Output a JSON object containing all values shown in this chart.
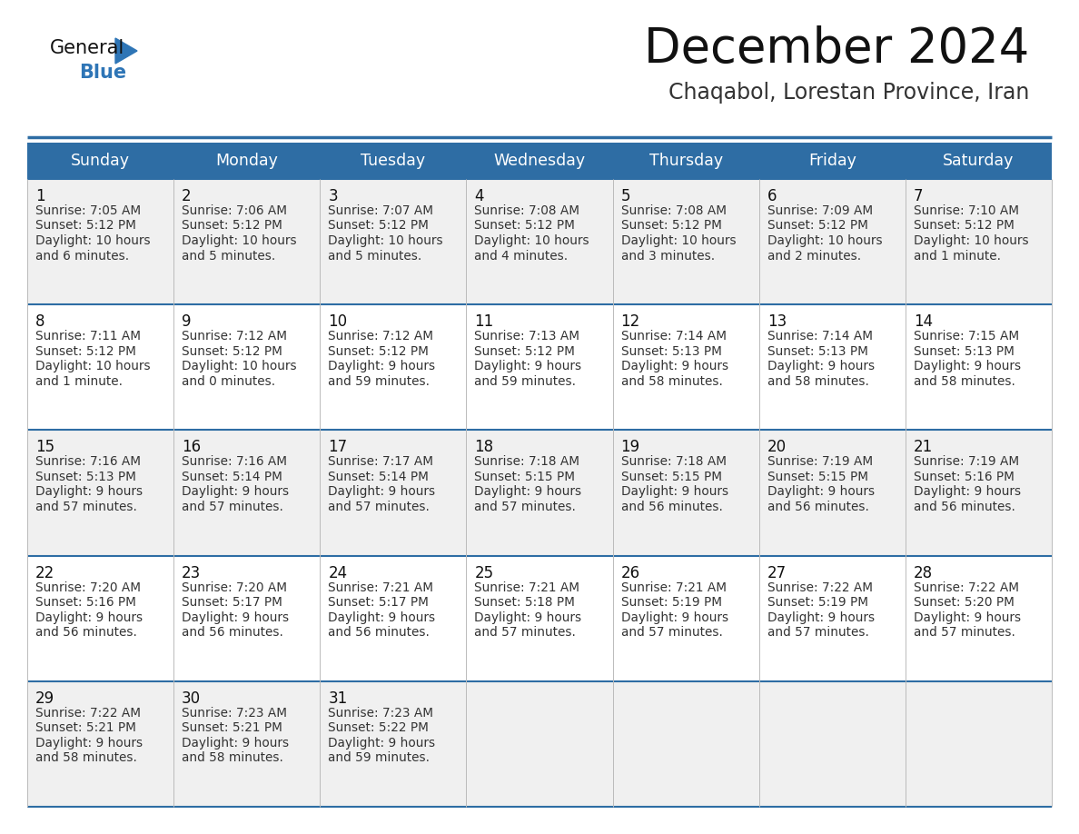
{
  "title": "December 2024",
  "subtitle": "Chaqabol, Lorestan Province, Iran",
  "header_bg": "#2E6DA4",
  "header_text_color": "#FFFFFF",
  "cell_bg_odd": "#F0F0F0",
  "cell_bg_even": "#FFFFFF",
  "day_headers": [
    "Sunday",
    "Monday",
    "Tuesday",
    "Wednesday",
    "Thursday",
    "Friday",
    "Saturday"
  ],
  "title_fontsize": 38,
  "subtitle_fontsize": 17,
  "header_fontsize": 12.5,
  "day_num_fontsize": 12,
  "cell_fontsize": 9.8,
  "logo_general_color": "#111111",
  "logo_blue_color": "#2E75B6",
  "border_color": "#2E6DA4",
  "weeks": [
    [
      {
        "day": 1,
        "sunrise": "7:05 AM",
        "sunset": "5:12 PM",
        "daylight": "10 hours and 6 minutes."
      },
      {
        "day": 2,
        "sunrise": "7:06 AM",
        "sunset": "5:12 PM",
        "daylight": "10 hours and 5 minutes."
      },
      {
        "day": 3,
        "sunrise": "7:07 AM",
        "sunset": "5:12 PM",
        "daylight": "10 hours and 5 minutes."
      },
      {
        "day": 4,
        "sunrise": "7:08 AM",
        "sunset": "5:12 PM",
        "daylight": "10 hours and 4 minutes."
      },
      {
        "day": 5,
        "sunrise": "7:08 AM",
        "sunset": "5:12 PM",
        "daylight": "10 hours and 3 minutes."
      },
      {
        "day": 6,
        "sunrise": "7:09 AM",
        "sunset": "5:12 PM",
        "daylight": "10 hours and 2 minutes."
      },
      {
        "day": 7,
        "sunrise": "7:10 AM",
        "sunset": "5:12 PM",
        "daylight": "10 hours and 1 minute."
      }
    ],
    [
      {
        "day": 8,
        "sunrise": "7:11 AM",
        "sunset": "5:12 PM",
        "daylight": "10 hours and 1 minute."
      },
      {
        "day": 9,
        "sunrise": "7:12 AM",
        "sunset": "5:12 PM",
        "daylight": "10 hours and 0 minutes."
      },
      {
        "day": 10,
        "sunrise": "7:12 AM",
        "sunset": "5:12 PM",
        "daylight": "9 hours and 59 minutes."
      },
      {
        "day": 11,
        "sunrise": "7:13 AM",
        "sunset": "5:12 PM",
        "daylight": "9 hours and 59 minutes."
      },
      {
        "day": 12,
        "sunrise": "7:14 AM",
        "sunset": "5:13 PM",
        "daylight": "9 hours and 58 minutes."
      },
      {
        "day": 13,
        "sunrise": "7:14 AM",
        "sunset": "5:13 PM",
        "daylight": "9 hours and 58 minutes."
      },
      {
        "day": 14,
        "sunrise": "7:15 AM",
        "sunset": "5:13 PM",
        "daylight": "9 hours and 58 minutes."
      }
    ],
    [
      {
        "day": 15,
        "sunrise": "7:16 AM",
        "sunset": "5:13 PM",
        "daylight": "9 hours and 57 minutes."
      },
      {
        "day": 16,
        "sunrise": "7:16 AM",
        "sunset": "5:14 PM",
        "daylight": "9 hours and 57 minutes."
      },
      {
        "day": 17,
        "sunrise": "7:17 AM",
        "sunset": "5:14 PM",
        "daylight": "9 hours and 57 minutes."
      },
      {
        "day": 18,
        "sunrise": "7:18 AM",
        "sunset": "5:15 PM",
        "daylight": "9 hours and 57 minutes."
      },
      {
        "day": 19,
        "sunrise": "7:18 AM",
        "sunset": "5:15 PM",
        "daylight": "9 hours and 56 minutes."
      },
      {
        "day": 20,
        "sunrise": "7:19 AM",
        "sunset": "5:15 PM",
        "daylight": "9 hours and 56 minutes."
      },
      {
        "day": 21,
        "sunrise": "7:19 AM",
        "sunset": "5:16 PM",
        "daylight": "9 hours and 56 minutes."
      }
    ],
    [
      {
        "day": 22,
        "sunrise": "7:20 AM",
        "sunset": "5:16 PM",
        "daylight": "9 hours and 56 minutes."
      },
      {
        "day": 23,
        "sunrise": "7:20 AM",
        "sunset": "5:17 PM",
        "daylight": "9 hours and 56 minutes."
      },
      {
        "day": 24,
        "sunrise": "7:21 AM",
        "sunset": "5:17 PM",
        "daylight": "9 hours and 56 minutes."
      },
      {
        "day": 25,
        "sunrise": "7:21 AM",
        "sunset": "5:18 PM",
        "daylight": "9 hours and 57 minutes."
      },
      {
        "day": 26,
        "sunrise": "7:21 AM",
        "sunset": "5:19 PM",
        "daylight": "9 hours and 57 minutes."
      },
      {
        "day": 27,
        "sunrise": "7:22 AM",
        "sunset": "5:19 PM",
        "daylight": "9 hours and 57 minutes."
      },
      {
        "day": 28,
        "sunrise": "7:22 AM",
        "sunset": "5:20 PM",
        "daylight": "9 hours and 57 minutes."
      }
    ],
    [
      {
        "day": 29,
        "sunrise": "7:22 AM",
        "sunset": "5:21 PM",
        "daylight": "9 hours and 58 minutes."
      },
      {
        "day": 30,
        "sunrise": "7:23 AM",
        "sunset": "5:21 PM",
        "daylight": "9 hours and 58 minutes."
      },
      {
        "day": 31,
        "sunrise": "7:23 AM",
        "sunset": "5:22 PM",
        "daylight": "9 hours and 59 minutes."
      },
      null,
      null,
      null,
      null
    ]
  ]
}
